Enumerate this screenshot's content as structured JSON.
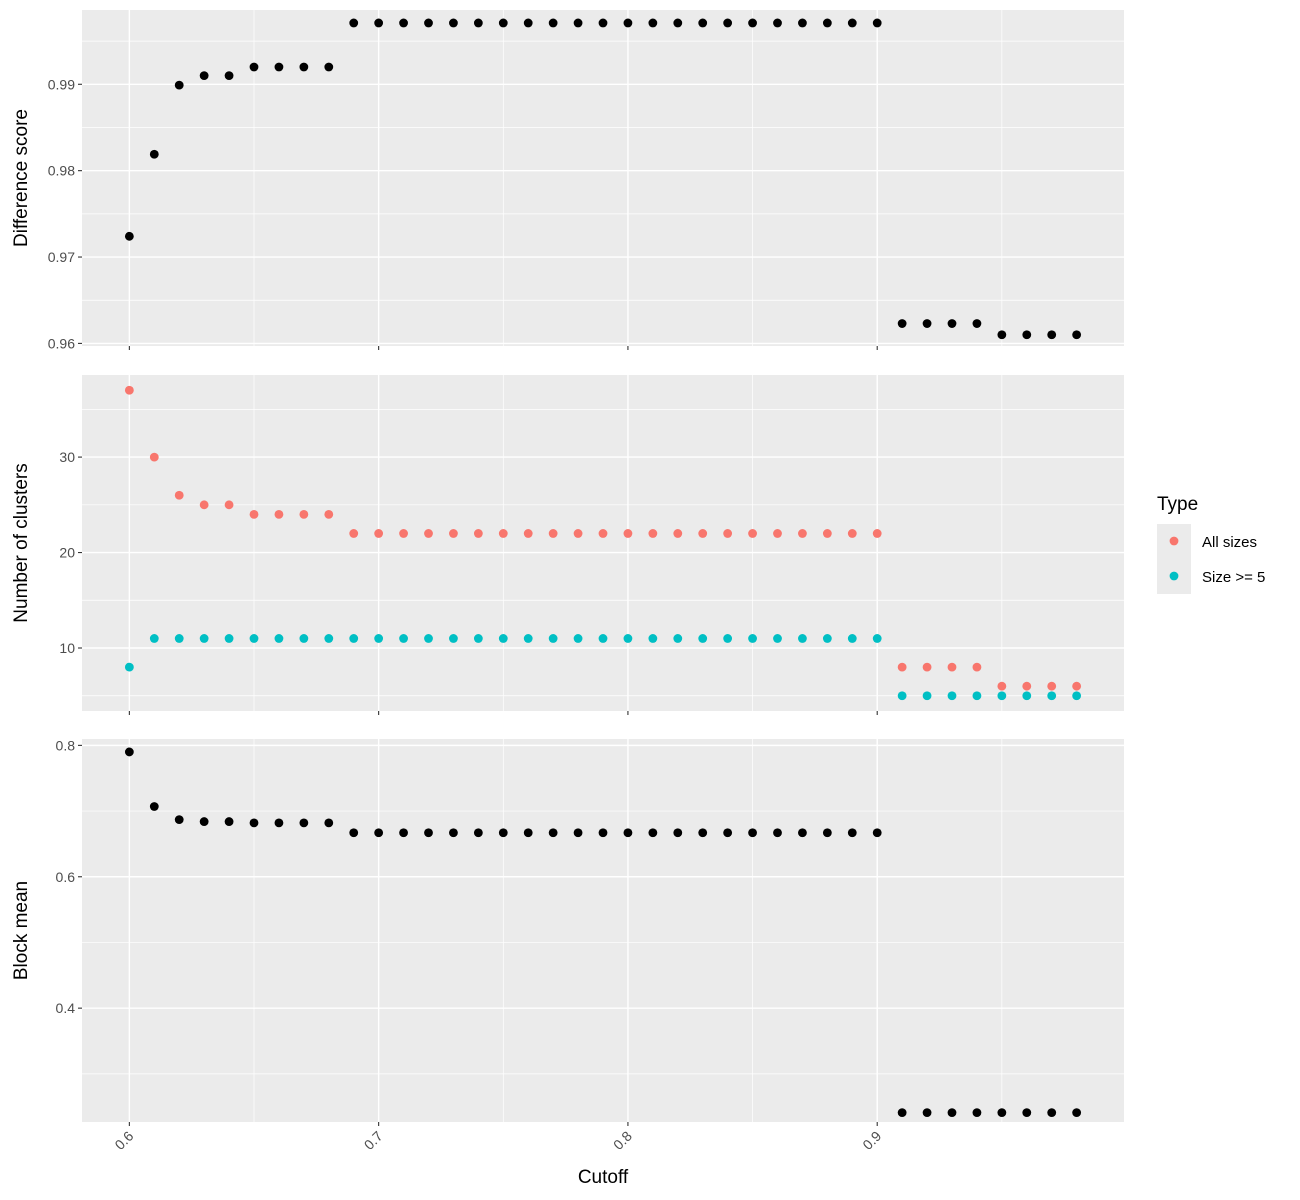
{
  "chart_data": [
    {
      "type": "scatter",
      "ylabel": "Difference score",
      "ylim": [
        0.9597,
        0.9986
      ],
      "yticks": [
        0.96,
        0.97,
        0.98,
        0.99
      ],
      "ytick_labels": [
        "0.96",
        "0.97",
        "0.98",
        "0.99"
      ],
      "grid": true,
      "series": [
        {
          "color": "#000000",
          "x": [
            0.6,
            0.61,
            0.62,
            0.63,
            0.64,
            0.65,
            0.66,
            0.67,
            0.68,
            0.69,
            0.7,
            0.71,
            0.72,
            0.73,
            0.74,
            0.75,
            0.76,
            0.77,
            0.78,
            0.79,
            0.8,
            0.81,
            0.82,
            0.83,
            0.84,
            0.85,
            0.86,
            0.87,
            0.88,
            0.89,
            0.9,
            0.91,
            0.92,
            0.93,
            0.94,
            0.95,
            0.96,
            0.97,
            0.98
          ],
          "values": [
            0.9724,
            0.9819,
            0.9899,
            0.991,
            0.991,
            0.992,
            0.992,
            0.992,
            0.992,
            0.9971,
            0.9971,
            0.9971,
            0.9971,
            0.9971,
            0.9971,
            0.9971,
            0.9971,
            0.9971,
            0.9971,
            0.9971,
            0.9971,
            0.9971,
            0.9971,
            0.9971,
            0.9971,
            0.9971,
            0.9971,
            0.9971,
            0.9971,
            0.9971,
            0.9971,
            0.9623,
            0.9623,
            0.9623,
            0.9623,
            0.961,
            0.961,
            0.961,
            0.961
          ]
        }
      ]
    },
    {
      "type": "scatter",
      "ylabel": "Number of clusters",
      "ylim": [
        3.4,
        38.6
      ],
      "yticks": [
        10,
        20,
        30
      ],
      "ytick_labels": [
        "10",
        "20",
        "30"
      ],
      "grid": true,
      "legend": {
        "title": "Type",
        "position": "right"
      },
      "series": [
        {
          "name": "All sizes",
          "color": "#F8766D",
          "x": [
            0.6,
            0.61,
            0.62,
            0.63,
            0.64,
            0.65,
            0.66,
            0.67,
            0.68,
            0.69,
            0.7,
            0.71,
            0.72,
            0.73,
            0.74,
            0.75,
            0.76,
            0.77,
            0.78,
            0.79,
            0.8,
            0.81,
            0.82,
            0.83,
            0.84,
            0.85,
            0.86,
            0.87,
            0.88,
            0.89,
            0.9,
            0.91,
            0.92,
            0.93,
            0.94,
            0.95,
            0.96,
            0.97,
            0.98
          ],
          "values": [
            37,
            30,
            26,
            25,
            25,
            24,
            24,
            24,
            24,
            22,
            22,
            22,
            22,
            22,
            22,
            22,
            22,
            22,
            22,
            22,
            22,
            22,
            22,
            22,
            22,
            22,
            22,
            22,
            22,
            22,
            22,
            8,
            8,
            8,
            8,
            6,
            6,
            6,
            6
          ]
        },
        {
          "name": "Size >= 5",
          "color": "#00BFC4",
          "x": [
            0.6,
            0.61,
            0.62,
            0.63,
            0.64,
            0.65,
            0.66,
            0.67,
            0.68,
            0.69,
            0.7,
            0.71,
            0.72,
            0.73,
            0.74,
            0.75,
            0.76,
            0.77,
            0.78,
            0.79,
            0.8,
            0.81,
            0.82,
            0.83,
            0.84,
            0.85,
            0.86,
            0.87,
            0.88,
            0.89,
            0.9,
            0.91,
            0.92,
            0.93,
            0.94,
            0.95,
            0.96,
            0.97,
            0.98
          ],
          "values": [
            8,
            11,
            11,
            11,
            11,
            11,
            11,
            11,
            11,
            11,
            11,
            11,
            11,
            11,
            11,
            11,
            11,
            11,
            11,
            11,
            11,
            11,
            11,
            11,
            11,
            11,
            11,
            11,
            11,
            11,
            11,
            5,
            5,
            5,
            5,
            5,
            5,
            5,
            5
          ]
        }
      ]
    },
    {
      "type": "scatter",
      "xlabel": "Cutoff",
      "ylabel": "Block mean",
      "xlim": [
        0.581,
        0.999
      ],
      "xticks": [
        0.6,
        0.7,
        0.8,
        0.9
      ],
      "xtick_labels": [
        "0.6",
        "0.7",
        "0.8",
        "0.9"
      ],
      "ylim": [
        0.2267,
        0.8097
      ],
      "yticks": [
        0.4,
        0.6,
        0.8
      ],
      "ytick_labels": [
        "0.4",
        "0.6",
        "0.8"
      ],
      "grid": true,
      "series": [
        {
          "color": "#000000",
          "x": [
            0.6,
            0.61,
            0.62,
            0.63,
            0.64,
            0.65,
            0.66,
            0.67,
            0.68,
            0.69,
            0.7,
            0.71,
            0.72,
            0.73,
            0.74,
            0.75,
            0.76,
            0.77,
            0.78,
            0.79,
            0.8,
            0.81,
            0.82,
            0.83,
            0.84,
            0.85,
            0.86,
            0.87,
            0.88,
            0.89,
            0.9,
            0.91,
            0.92,
            0.93,
            0.94,
            0.95,
            0.96,
            0.97,
            0.98
          ],
          "values": [
            0.79,
            0.707,
            0.687,
            0.684,
            0.684,
            0.682,
            0.682,
            0.682,
            0.682,
            0.667,
            0.667,
            0.667,
            0.667,
            0.667,
            0.667,
            0.667,
            0.667,
            0.667,
            0.667,
            0.667,
            0.667,
            0.667,
            0.667,
            0.667,
            0.667,
            0.667,
            0.667,
            0.667,
            0.667,
            0.667,
            0.667,
            0.241,
            0.241,
            0.241,
            0.241,
            0.241,
            0.241,
            0.241,
            0.241
          ]
        }
      ]
    }
  ]
}
